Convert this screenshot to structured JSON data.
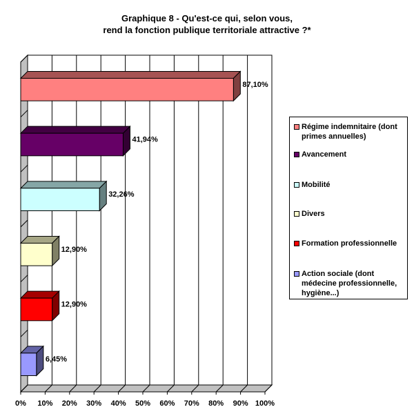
{
  "title_lines": [
    "Graphique 8 - Qu'est-ce qui, selon vous,",
    "rend la fonction publique territoriale attractive ?*"
  ],
  "chart_data": {
    "type": "bar",
    "orientation": "horizontal",
    "title": "Graphique 8 - Qu'est-ce qui, selon vous, rend la fonction publique territoriale attractive ?*",
    "categories": [
      "Régime indemnitaire (dont primes annuelles)",
      "Avancement",
      "Mobilité",
      "Divers",
      "Formation professionnelle",
      "Action sociale (dont médecine professionnelle, hygiène...)"
    ],
    "values": [
      87.1,
      41.94,
      32.26,
      12.9,
      12.9,
      6.45
    ],
    "value_labels": [
      "87,10%",
      "41,94%",
      "32,26%",
      "12,90%",
      "12,90%",
      "6,45%"
    ],
    "colors": [
      "#FF8080",
      "#660066",
      "#CCFFFF",
      "#FFFFCC",
      "#FF0000",
      "#9999FF"
    ],
    "xlim": [
      0,
      100
    ],
    "x_ticks": [
      "0%",
      "10%",
      "20%",
      "30%",
      "40%",
      "50%",
      "60%",
      "70%",
      "80%",
      "90%",
      "100%"
    ],
    "grid": true,
    "legend_position": "right"
  }
}
